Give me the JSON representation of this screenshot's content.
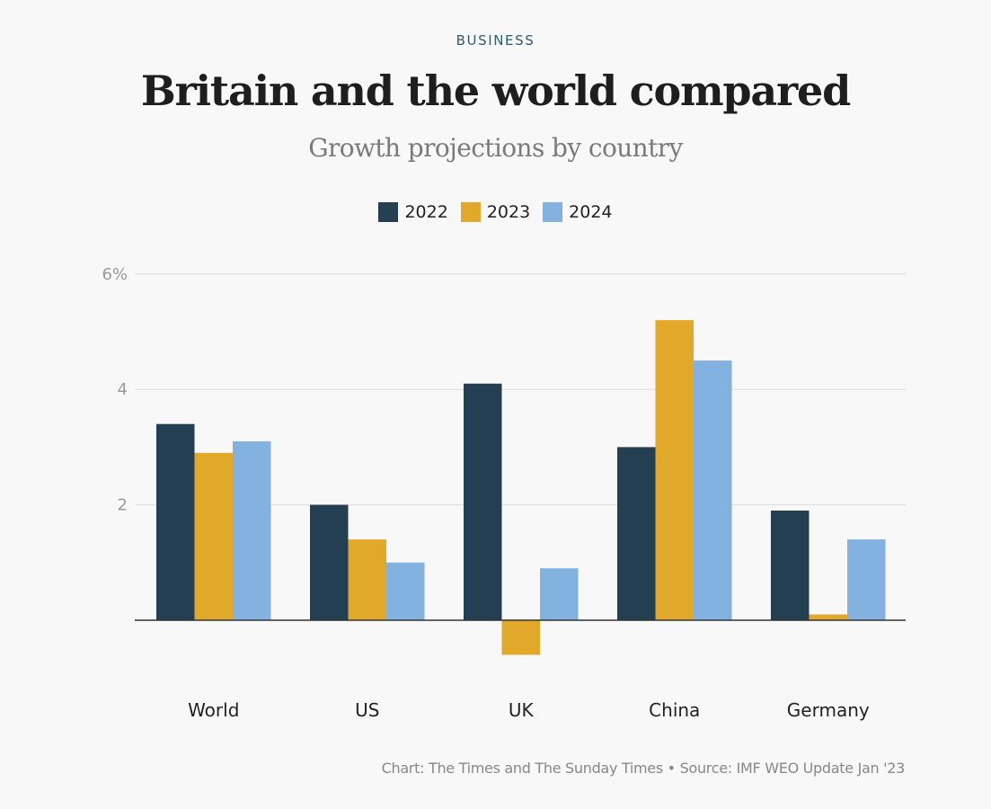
{
  "header": {
    "kicker": "BUSINESS",
    "title": "Britain and the world compared",
    "subtitle": "Growth projections by country"
  },
  "footer": {
    "credit": "Chart: The Times and The Sunday Times • Source: IMF WEO Update Jan '23"
  },
  "colors": {
    "series_2022": "#233f51",
    "series_2023": "#e2a829",
    "series_2024": "#83b1e0",
    "grid": "#dcdcdc",
    "axis": "#333333",
    "tick_text": "#9a9a9a"
  },
  "chart_data": {
    "type": "bar",
    "title": "Britain and the world compared",
    "subtitle": "Growth projections by country",
    "categories": [
      "World",
      "US",
      "UK",
      "China",
      "Germany"
    ],
    "series": [
      {
        "name": "2022",
        "values": [
          3.4,
          2.0,
          4.1,
          3.0,
          1.9
        ]
      },
      {
        "name": "2023",
        "values": [
          2.9,
          1.4,
          -0.6,
          5.2,
          0.1
        ]
      },
      {
        "name": "2024",
        "values": [
          3.1,
          1.0,
          0.9,
          4.5,
          1.4
        ]
      }
    ],
    "yticks": [
      {
        "value": 2,
        "label": "2"
      },
      {
        "value": 4,
        "label": "4"
      },
      {
        "value": 6,
        "label": "6%"
      }
    ],
    "ylim": [
      -0.6,
      6
    ],
    "xlabel": "",
    "ylabel": "",
    "grid": true,
    "legend": "top-center"
  }
}
